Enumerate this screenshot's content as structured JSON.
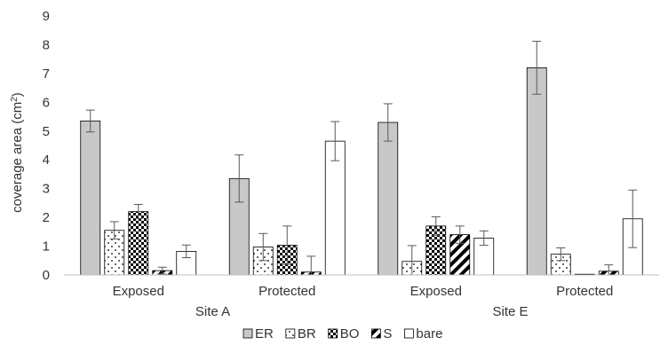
{
  "chart_data": {
    "type": "bar",
    "ylabel_main": "coverage area (cm",
    "ylabel_sup": "2",
    "ylabel_close": ")",
    "ylim": [
      0,
      9
    ],
    "yticks": [
      0,
      1,
      2,
      3,
      4,
      5,
      6,
      7,
      8,
      9
    ],
    "grid": false,
    "legend_position": "bottom",
    "groups": [
      {
        "label": "Site A",
        "subgroups": [
          "Exposed",
          "Protected"
        ]
      },
      {
        "label": "Site E",
        "subgroups": [
          "Exposed",
          "Protected"
        ]
      }
    ],
    "categories": [
      "Exposed",
      "Protected",
      "Exposed",
      "Protected"
    ],
    "series": [
      {
        "name": "ER",
        "pattern": "gray",
        "values": [
          5.35,
          3.35,
          5.3,
          7.2
        ],
        "errors": [
          0.38,
          0.82,
          0.65,
          0.92
        ]
      },
      {
        "name": "BR",
        "pattern": "dots",
        "values": [
          1.55,
          0.97,
          0.47,
          0.72
        ],
        "errors": [
          0.3,
          0.47,
          0.55,
          0.22
        ]
      },
      {
        "name": "BO",
        "pattern": "checker",
        "values": [
          2.2,
          1.03,
          1.7,
          0.0
        ],
        "errors": [
          0.25,
          0.67,
          0.32,
          0.0
        ]
      },
      {
        "name": "S",
        "pattern": "diagonal",
        "values": [
          0.15,
          0.1,
          1.4,
          0.13
        ],
        "errors": [
          0.12,
          0.55,
          0.3,
          0.22
        ]
      },
      {
        "name": "bare",
        "pattern": "white",
        "values": [
          0.82,
          4.65,
          1.28,
          1.95
        ],
        "errors": [
          0.22,
          0.68,
          0.25,
          1.0
        ]
      }
    ],
    "colors": {
      "axis": "#bfbfbf",
      "bar_stroke": "#000000",
      "gray_fill": "#c8c8c8",
      "error": "#595959",
      "text": "#333333"
    }
  }
}
